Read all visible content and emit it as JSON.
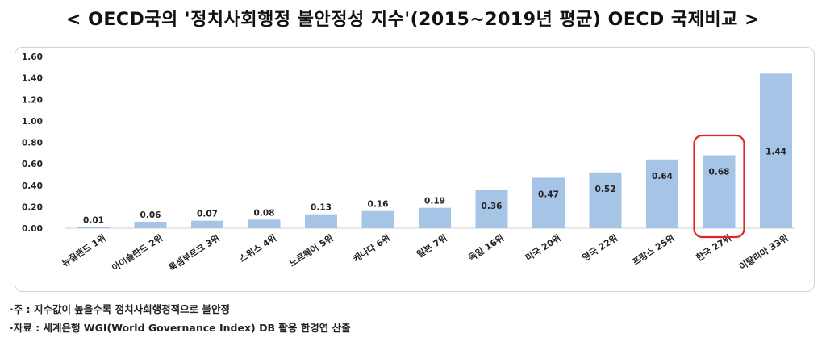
{
  "title": "< OECD국의 '정치사회행정 불안정성 지수'(2015~2019년 평균) OECD 국제비교 >",
  "notes": {
    "note1": "·주 : 지수값이 높을수록 정치사회행정적으로 불안정",
    "note2": "·자료 : 세계은행 WGI(World Governance Index) DB 활용 한경연 산출"
  },
  "colors": {
    "bar": "#a6c4e6",
    "highlight_border": "#e2242b",
    "grid_frame": "#c9d3e3"
  },
  "chart_data": {
    "type": "bar",
    "categories": [
      "뉴질랜드 1위",
      "아이슬란드 2위",
      "룩셈부르크 3위",
      "스위스 4위",
      "노르웨이 5위",
      "캐나다 6위",
      "일본 7위",
      "독일 16위",
      "미국 20위",
      "영국 22위",
      "프랑스 25위",
      "한국 27위",
      "이탈리아 33위"
    ],
    "values": [
      0.01,
      0.06,
      0.07,
      0.08,
      0.13,
      0.16,
      0.19,
      0.36,
      0.47,
      0.52,
      0.64,
      0.68,
      1.44
    ],
    "data_labels": [
      "0.01",
      "0.06",
      "0.07",
      "0.08",
      "0.13",
      "0.16",
      "0.19",
      "0.36",
      "0.47",
      "0.52",
      "0.64",
      "0.68",
      "1.44"
    ],
    "y_ticks": [
      "0.00",
      "0.20",
      "0.40",
      "0.60",
      "0.80",
      "1.00",
      "1.20",
      "1.40",
      "1.60"
    ],
    "ylim": [
      0,
      1.6
    ],
    "grid": false,
    "highlight": "한국 27위"
  }
}
